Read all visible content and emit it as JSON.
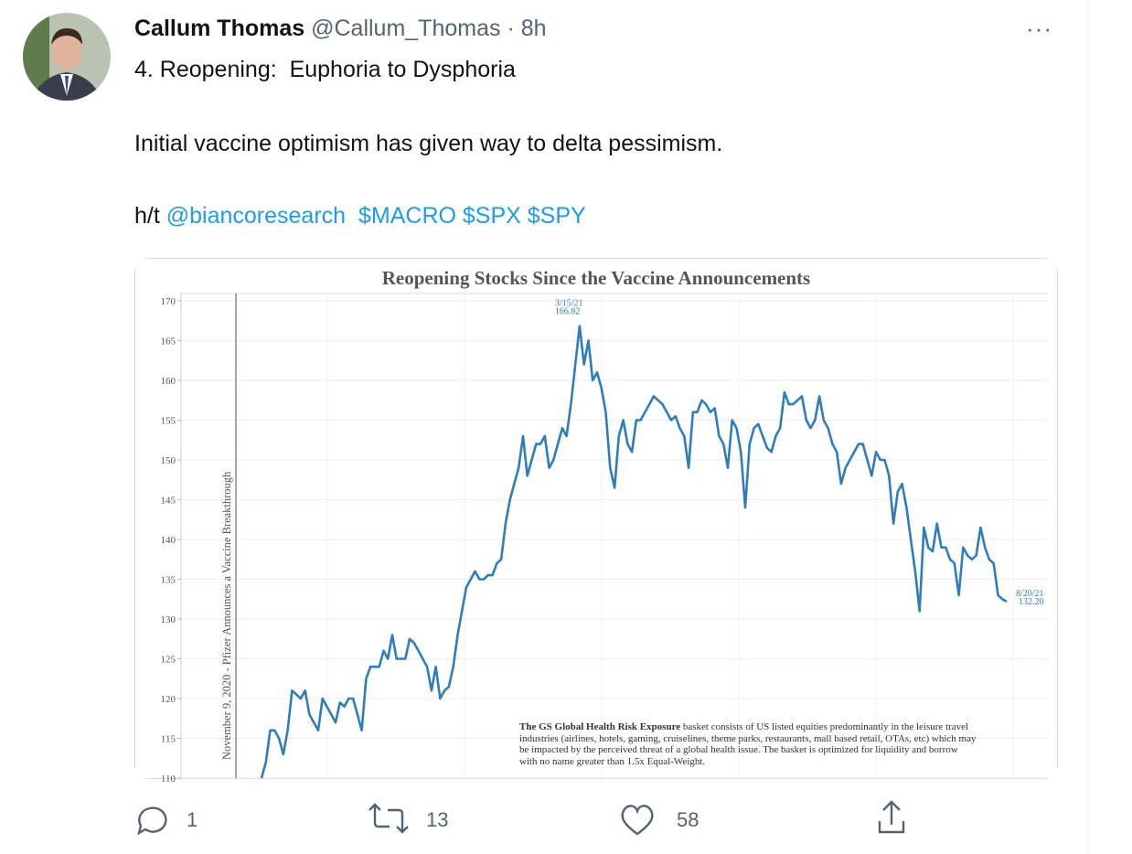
{
  "tweet": {
    "author_name": "Callum Thomas",
    "handle": "@Callum_Thomas",
    "time": "· 8h",
    "text_lines": [
      "4. Reopening:  Euphoria to Dysphoria",
      "Initial vaccine optimism has given way to delta pessimism."
    ],
    "hat_tip": "h/t",
    "mention": "@biancoresearch",
    "cashtags": "$MACRO $SPX $SPY",
    "replies": 1,
    "retweets": 13,
    "likes": 58
  },
  "chart_data": {
    "type": "line",
    "title": "Reopening Stocks Since the Vaccine Announcements",
    "color": "#2f7dbd",
    "grid": true,
    "ylim": [
      110,
      170
    ],
    "yticks": [
      110,
      115,
      120,
      125,
      130,
      135,
      140,
      145,
      150,
      155,
      160,
      165,
      170
    ],
    "event": "November 9, 2020 - Pfizer Announces a Vaccine Breakthrough",
    "values": [
      110,
      112,
      116,
      116,
      115,
      113,
      116,
      121,
      120.5,
      120,
      121,
      118,
      117,
      116,
      120,
      119,
      118,
      117,
      119.5,
      119,
      120,
      120,
      118,
      116,
      122.5,
      124,
      124,
      124,
      126,
      125,
      128,
      125,
      125,
      125,
      127.5,
      127,
      126,
      125,
      124,
      121,
      124,
      120,
      121,
      121.5,
      124,
      128,
      131,
      134,
      135,
      136,
      135,
      135,
      135.5,
      135.5,
      137,
      137.5,
      142,
      145,
      147,
      149,
      153,
      148,
      150,
      152,
      152,
      153,
      149,
      150,
      152,
      154,
      153,
      157,
      162,
      166.82,
      162,
      165,
      160,
      161,
      159,
      156,
      149,
      146.5,
      153,
      155,
      152,
      151,
      155,
      155,
      156,
      157,
      158,
      157.5,
      157,
      156,
      155,
      155.5,
      154,
      153,
      149,
      156,
      156,
      157.5,
      157,
      156,
      156.5,
      153,
      152,
      149,
      155,
      154,
      151,
      144,
      152,
      154,
      154.5,
      153,
      151.5,
      151,
      153,
      154,
      158.5,
      157,
      157,
      157.5,
      158,
      155,
      154,
      155,
      158,
      155,
      154,
      152,
      151,
      147,
      149,
      150,
      151,
      152,
      152,
      150,
      148,
      151,
      150,
      150,
      148,
      142,
      146,
      147,
      144,
      140,
      136,
      131,
      141.5,
      139,
      138.5,
      142,
      139,
      139,
      137.5,
      137,
      133,
      139,
      138,
      137.5,
      138,
      141.5,
      139,
      137.5,
      137,
      133,
      132.5,
      132.2
    ],
    "annotations": [
      {
        "date": "3/15/21",
        "value": 166.82
      },
      {
        "date": "8/20/21",
        "value": 132.2,
        "value_label": "132.20"
      }
    ],
    "footnote_bold": "The GS Global Health Risk Exposure",
    "footnote": " basket consists of US listed equities predominantly in the leisure travel industries (airlines, hotels, gaming, cruiselines, theme parks, restaurants, mall based retail, OTAs, etc) which may be impacted by the perceived threat of a global health issue. The basket is optimized for liquidity and borrow with no name greater than 1.5x Equal-Weight."
  }
}
